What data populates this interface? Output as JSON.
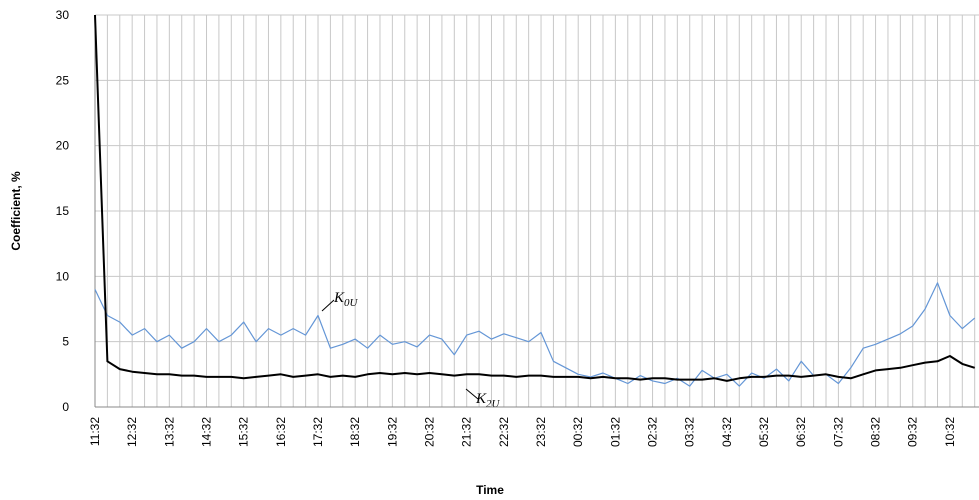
{
  "chart_data": {
    "type": "line",
    "x_label": "Time",
    "y_label": "Coefficient, %",
    "categories": [
      "11:32",
      null,
      null,
      "12:32",
      null,
      null,
      "13:32",
      null,
      null,
      "14:32",
      null,
      null,
      "15:32",
      null,
      null,
      "16:32",
      null,
      null,
      "17:32",
      null,
      null,
      "18:32",
      null,
      null,
      "19:32",
      null,
      null,
      "20:32",
      null,
      null,
      "21:32",
      null,
      null,
      "22:32",
      null,
      null,
      "23:32",
      null,
      null,
      "00:32",
      null,
      null,
      "01:32",
      null,
      null,
      "02:32",
      null,
      null,
      "03:32",
      null,
      null,
      "04:32",
      null,
      null,
      "05:32",
      null,
      null,
      "06:32",
      null,
      null,
      "07:32",
      null,
      null,
      "08:32",
      null,
      null,
      "09:32",
      null,
      null,
      "10:32",
      null,
      null
    ],
    "series": [
      {
        "name": "K0U",
        "color": "#6496d6",
        "values": [
          9,
          7,
          6.5,
          5.5,
          6,
          5,
          5.5,
          4.5,
          5,
          6,
          5,
          5.5,
          6.5,
          5,
          6,
          5.5,
          6,
          5.5,
          7,
          4.5,
          4.8,
          5.2,
          4.5,
          5.5,
          4.8,
          5,
          4.6,
          5.5,
          5.2,
          4,
          5.5,
          5.8,
          5.2,
          5.6,
          5.3,
          5,
          5.7,
          3.5,
          3,
          2.5,
          2.3,
          2.6,
          2.2,
          1.8,
          2.4,
          2,
          1.8,
          2.2,
          1.6,
          2.8,
          2.2,
          2.5,
          1.6,
          2.6,
          2.2,
          2.9,
          2,
          3.5,
          2.4,
          2.5,
          1.8,
          3,
          4.5,
          4.8,
          5.2,
          5.6,
          6.2,
          7.5,
          9.5,
          7,
          6,
          6.8
        ]
      },
      {
        "name": "K2U",
        "color": "#000000",
        "values": [
          30,
          3.5,
          2.9,
          2.7,
          2.6,
          2.5,
          2.5,
          2.4,
          2.4,
          2.3,
          2.3,
          2.3,
          2.2,
          2.3,
          2.4,
          2.5,
          2.3,
          2.4,
          2.5,
          2.3,
          2.4,
          2.3,
          2.5,
          2.6,
          2.5,
          2.6,
          2.5,
          2.6,
          2.5,
          2.4,
          2.5,
          2.5,
          2.4,
          2.4,
          2.3,
          2.4,
          2.4,
          2.3,
          2.3,
          2.3,
          2.2,
          2.3,
          2.2,
          2.2,
          2.1,
          2.2,
          2.2,
          2.1,
          2.1,
          2.1,
          2.2,
          2.0,
          2.2,
          2.3,
          2.3,
          2.4,
          2.4,
          2.3,
          2.4,
          2.5,
          2.3,
          2.2,
          2.5,
          2.8,
          2.9,
          3.0,
          3.2,
          3.4,
          3.5,
          3.9,
          3.3,
          3.0
        ]
      }
    ],
    "annotations": [
      {
        "text": "K",
        "subscript": "0U"
      },
      {
        "text": "K",
        "subscript": "2U"
      }
    ],
    "ylim": [
      0,
      30
    ],
    "yticks": [
      0,
      5,
      10,
      15,
      20,
      25,
      30
    ],
    "grid": true
  }
}
